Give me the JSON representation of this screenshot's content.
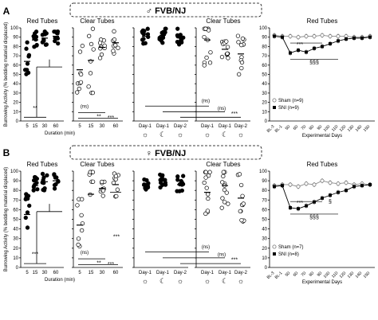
{
  "panels": [
    {
      "letter": "A",
      "sex_symbol": "♂",
      "strain": "FVB/NJ",
      "sham_legend": "Sham (n=9)",
      "sni_legend": "SNI (n=9)"
    },
    {
      "letter": "B",
      "sex_symbol": "♀",
      "strain": "FVB/NJ",
      "sham_legend": "Sham (n=7)",
      "sni_legend": "SNI (n=8)"
    }
  ],
  "ylabel": "Burrowing Activity (% bedding material displaced)",
  "yticks": [
    "0",
    "10",
    "20",
    "30",
    "40",
    "50",
    "60",
    "70",
    "80",
    "90",
    "100"
  ],
  "titles": {
    "red": "Red Tubes",
    "clear": "Clear Tubes"
  },
  "duration_ticks": [
    "5",
    "15",
    "30",
    "60"
  ],
  "duration_xlabel": "Duration (min)",
  "day_ticks": [
    "Day-1",
    "Day-1",
    "Day-2"
  ],
  "exp_xlabel": "Experimental Days",
  "exp_ticks": [
    "BL-3",
    "BL-1",
    "5D",
    "6D",
    "7D",
    "8D",
    "9D",
    "10D",
    "11D",
    "12D",
    "13D",
    "14D",
    "15D"
  ],
  "sig": {
    "ns": "(ns)",
    "s2": "**",
    "s3": "***",
    "d3": "§§§",
    "d1": "§"
  },
  "chart_data": [
    {
      "type": "scatter",
      "panel": "A",
      "title": "Red Tubes",
      "xlabel": "Duration (min)",
      "ylabel": "Burrowing Activity (% bedding material displaced)",
      "ylim": [
        0,
        100
      ],
      "categories": [
        "5",
        "15",
        "30",
        "60"
      ],
      "means": [
        64,
        87,
        89,
        91
      ]
    },
    {
      "type": "scatter",
      "panel": "A",
      "title": "Clear Tubes",
      "xlabel": "Duration (min)",
      "ylim": [
        0,
        100
      ],
      "categories": [
        "5",
        "15",
        "30",
        "60"
      ],
      "means": [
        55,
        65,
        79,
        84
      ]
    },
    {
      "type": "scatter",
      "panel": "A",
      "ylim": [
        0,
        100
      ],
      "categories": [
        "Day-1",
        "Day-1",
        "Day-2"
      ],
      "means": [
        91,
        92,
        91
      ]
    },
    {
      "type": "scatter",
      "panel": "A",
      "title": "Clear Tubes",
      "ylim": [
        0,
        100
      ],
      "categories": [
        "Day-1",
        "Day-1",
        "Day-2"
      ],
      "means": [
        87,
        77,
        72
      ]
    },
    {
      "type": "line",
      "panel": "A",
      "title": "Red Tubes",
      "xlabel": "Experimental Days",
      "ylim": [
        0,
        100
      ],
      "x": [
        "BL-3",
        "BL-1",
        "5D",
        "6D",
        "7D",
        "8D",
        "9D",
        "10D",
        "11D",
        "12D",
        "13D",
        "14D",
        "15D"
      ],
      "series": [
        {
          "name": "Sham (n=9)",
          "values": [
            92,
            91,
            91,
            90,
            91,
            91,
            92,
            91,
            91,
            91,
            90,
            90,
            91
          ]
        },
        {
          "name": "SNI (n=9)",
          "values": [
            91,
            90,
            73,
            76,
            74,
            78,
            80,
            83,
            86,
            88,
            89,
            89,
            90
          ]
        }
      ]
    },
    {
      "type": "scatter",
      "panel": "B",
      "title": "Red Tubes",
      "xlabel": "Duration (min)",
      "ylabel": "Burrowing Activity (% bedding material displaced)",
      "ylim": [
        0,
        100
      ],
      "categories": [
        "5",
        "15",
        "30",
        "60"
      ],
      "means": [
        55,
        85,
        89,
        90
      ]
    },
    {
      "type": "scatter",
      "panel": "B",
      "title": "Clear Tubes",
      "xlabel": "Duration (min)",
      "ylim": [
        0,
        100
      ],
      "categories": [
        "5",
        "15",
        "30",
        "60"
      ],
      "means": [
        44,
        76,
        82,
        86
      ]
    },
    {
      "type": "scatter",
      "panel": "B",
      "ylim": [
        0,
        100
      ],
      "categories": [
        "Day-1",
        "Day-1",
        "Day-2"
      ],
      "means": [
        85,
        90,
        86
      ]
    },
    {
      "type": "scatter",
      "panel": "B",
      "title": "Clear Tubes",
      "ylim": [
        0,
        100
      ],
      "categories": [
        "Day-1",
        "Day-1",
        "Day-2"
      ],
      "means": [
        78,
        85,
        72
      ]
    },
    {
      "type": "line",
      "panel": "B",
      "title": "Red Tubes",
      "xlabel": "Experimental Days",
      "ylim": [
        0,
        100
      ],
      "x": [
        "BL-3",
        "BL-1",
        "5D",
        "6D",
        "7D",
        "8D",
        "9D",
        "10D",
        "11D",
        "12D",
        "13D",
        "14D",
        "15D"
      ],
      "series": [
        {
          "name": "Sham (n=7)",
          "values": [
            85,
            86,
            86,
            84,
            87,
            86,
            90,
            88,
            87,
            88,
            86,
            87,
            86
          ]
        },
        {
          "name": "SNI (n=8)",
          "values": [
            84,
            85,
            62,
            61,
            64,
            68,
            72,
            75,
            78,
            80,
            84,
            85,
            86
          ]
        }
      ]
    }
  ]
}
